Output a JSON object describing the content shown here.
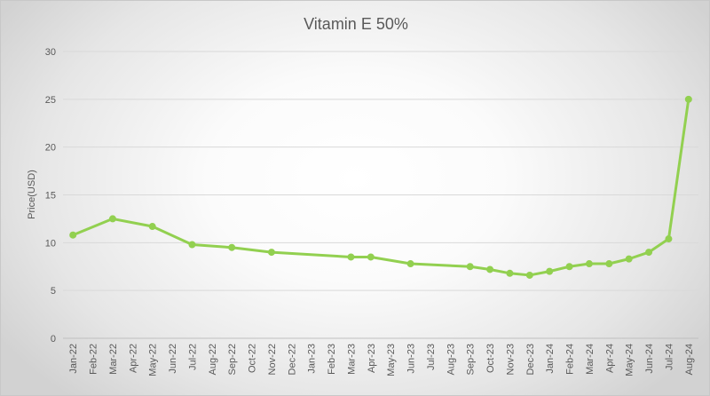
{
  "chart_data": {
    "type": "line",
    "title": "Vitamin E 50%",
    "xlabel": "",
    "ylabel": "Price(USD)",
    "ylim": [
      0,
      30
    ],
    "yticks": [
      0,
      5,
      10,
      15,
      20,
      25,
      30
    ],
    "grid": true,
    "line_color": "#92D050",
    "categories": [
      "Jan-22",
      "Feb-22",
      "Mar-22",
      "Apr-22",
      "May-22",
      "Jun-22",
      "Jul-22",
      "Aug-22",
      "Sep-22",
      "Oct-22",
      "Nov-22",
      "Dec-22",
      "Jan-23",
      "Feb-23",
      "Mar-23",
      "Apr-23",
      "May-23",
      "Jun-23",
      "Jul-23",
      "Aug-23",
      "Sep-23",
      "Oct-23",
      "Nov-23",
      "Dec-23",
      "Jan-24",
      "Feb-24",
      "Mar-24",
      "Apr-24",
      "May-24",
      "Jun-24",
      "Jul-24",
      "Aug-24"
    ],
    "series": [
      {
        "name": "Vitamin E 50%",
        "points": [
          {
            "x": "Jan-22",
            "y": 10.8
          },
          {
            "x": "Mar-22",
            "y": 12.5
          },
          {
            "x": "May-22",
            "y": 11.7
          },
          {
            "x": "Jul-22",
            "y": 9.8
          },
          {
            "x": "Sep-22",
            "y": 9.5
          },
          {
            "x": "Nov-22",
            "y": 9.0
          },
          {
            "x": "Mar-23",
            "y": 8.5
          },
          {
            "x": "Apr-23",
            "y": 8.5
          },
          {
            "x": "Jun-23",
            "y": 7.8
          },
          {
            "x": "Sep-23",
            "y": 7.5
          },
          {
            "x": "Oct-23",
            "y": 7.2
          },
          {
            "x": "Nov-23",
            "y": 6.8
          },
          {
            "x": "Dec-23",
            "y": 6.6
          },
          {
            "x": "Jan-24",
            "y": 7.0
          },
          {
            "x": "Feb-24",
            "y": 7.5
          },
          {
            "x": "Mar-24",
            "y": 7.8
          },
          {
            "x": "Apr-24",
            "y": 7.8
          },
          {
            "x": "May-24",
            "y": 8.3
          },
          {
            "x": "Jun-24",
            "y": 9.0
          },
          {
            "x": "Jul-24",
            "y": 10.4
          },
          {
            "x": "Aug-24",
            "y": 25.0
          }
        ]
      }
    ]
  }
}
